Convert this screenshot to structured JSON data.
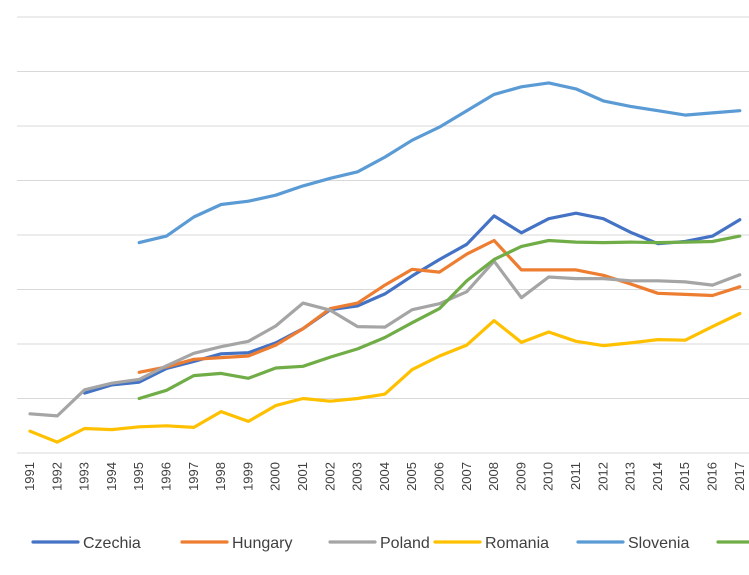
{
  "chart_data": {
    "type": "line",
    "x": [
      "1991",
      "1992",
      "1993",
      "1994",
      "1995",
      "1996",
      "1997",
      "1998",
      "1999",
      "2000",
      "2001",
      "2002",
      "2003",
      "2004",
      "2005",
      "2006",
      "2007",
      "2008",
      "2009",
      "2010",
      "2011",
      "2012",
      "2013",
      "2014",
      "2015",
      "2016",
      "2017"
    ],
    "ylim": [
      0,
      8
    ],
    "grid": true,
    "legend_position": "bottom",
    "series": [
      {
        "name": "Czechia",
        "color": "#4472C4",
        "values": [
          null,
          null,
          1.1,
          1.25,
          1.3,
          1.55,
          1.68,
          1.82,
          1.84,
          2.02,
          2.28,
          2.63,
          2.7,
          2.92,
          3.25,
          3.55,
          3.83,
          4.35,
          4.04,
          4.3,
          4.4,
          4.3,
          4.05,
          3.84,
          3.88,
          3.98,
          4.28
        ]
      },
      {
        "name": "Hungary",
        "color": "#ED7D31",
        "values": [
          null,
          null,
          null,
          null,
          1.48,
          1.58,
          1.72,
          1.75,
          1.78,
          1.98,
          2.28,
          2.65,
          2.75,
          3.08,
          3.37,
          3.32,
          3.65,
          3.9,
          3.36,
          3.36,
          3.36,
          3.26,
          3.1,
          2.93,
          2.91,
          2.89,
          3.05
        ]
      },
      {
        "name": "Poland",
        "color": "#A5A5A5",
        "values": [
          0.72,
          0.68,
          1.16,
          1.28,
          1.35,
          1.6,
          1.83,
          1.95,
          2.05,
          2.33,
          2.75,
          2.62,
          2.32,
          2.31,
          2.63,
          2.74,
          2.96,
          3.52,
          2.85,
          3.23,
          3.2,
          3.2,
          3.16,
          3.16,
          3.14,
          3.08,
          3.27
        ]
      },
      {
        "name": "Romania",
        "color": "#FFC000",
        "values": [
          0.4,
          0.2,
          0.45,
          0.43,
          0.48,
          0.5,
          0.47,
          0.76,
          0.58,
          0.87,
          1.0,
          0.95,
          1.0,
          1.08,
          1.53,
          1.78,
          1.98,
          2.43,
          2.03,
          2.22,
          2.05,
          1.97,
          2.02,
          2.08,
          2.07,
          2.32,
          2.56
        ]
      },
      {
        "name": "Slovenia",
        "color": "#5B9BD5",
        "values": [
          null,
          null,
          null,
          null,
          3.86,
          3.98,
          4.33,
          4.56,
          4.62,
          4.73,
          4.9,
          5.04,
          5.16,
          5.43,
          5.74,
          5.98,
          6.28,
          6.58,
          6.72,
          6.79,
          6.68,
          6.46,
          6.36,
          6.28,
          6.2,
          6.24,
          6.28
        ]
      },
      {
        "name": "",
        "color": "#70AD47",
        "values": [
          null,
          null,
          null,
          null,
          1.0,
          1.15,
          1.42,
          1.46,
          1.37,
          1.56,
          1.59,
          1.76,
          1.91,
          2.12,
          2.39,
          2.65,
          3.16,
          3.55,
          3.79,
          3.9,
          3.87,
          3.86,
          3.87,
          3.86,
          3.87,
          3.88,
          3.98
        ]
      }
    ]
  }
}
